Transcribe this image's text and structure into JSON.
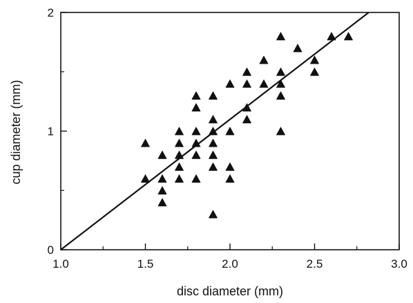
{
  "chart_data": {
    "type": "scatter",
    "title": "",
    "xlabel": "disc diameter (mm)",
    "ylabel": "cup diameter (mm)",
    "xlim": [
      1.0,
      3.0
    ],
    "ylim": [
      0,
      2
    ],
    "x_ticks": [
      1.0,
      1.5,
      2.0,
      2.5,
      3.0
    ],
    "x_tick_labels": [
      "1.0",
      "1.5",
      "2.0",
      "2.5",
      "3.0"
    ],
    "x_minor_ticks": [
      1.25,
      1.75,
      2.25,
      2.75
    ],
    "y_ticks": [
      0,
      1,
      2
    ],
    "y_tick_labels": [
      "0",
      "1",
      "2"
    ],
    "y_minor_ticks": [
      0.5,
      1.5
    ],
    "grid": false,
    "marker": "triangle",
    "marker_color": "#111111",
    "series": [
      {
        "points": [
          [
            1.5,
            0.9
          ],
          [
            1.5,
            0.6
          ],
          [
            1.6,
            0.8
          ],
          [
            1.6,
            0.6
          ],
          [
            1.6,
            0.5
          ],
          [
            1.6,
            0.4
          ],
          [
            1.7,
            1.0
          ],
          [
            1.7,
            0.9
          ],
          [
            1.7,
            0.8
          ],
          [
            1.7,
            0.7
          ],
          [
            1.7,
            0.6
          ],
          [
            1.8,
            1.3
          ],
          [
            1.8,
            1.2
          ],
          [
            1.8,
            1.0
          ],
          [
            1.8,
            0.9
          ],
          [
            1.8,
            0.8
          ],
          [
            1.8,
            0.6
          ],
          [
            1.9,
            1.3
          ],
          [
            1.9,
            1.1
          ],
          [
            1.9,
            1.0
          ],
          [
            1.9,
            0.9
          ],
          [
            1.9,
            0.8
          ],
          [
            1.9,
            0.7
          ],
          [
            1.9,
            0.3
          ],
          [
            2.0,
            1.4
          ],
          [
            2.0,
            1.0
          ],
          [
            2.0,
            0.7
          ],
          [
            2.0,
            0.6
          ],
          [
            2.1,
            1.5
          ],
          [
            2.1,
            1.4
          ],
          [
            2.1,
            1.2
          ],
          [
            2.1,
            1.1
          ],
          [
            2.2,
            1.6
          ],
          [
            2.2,
            1.4
          ],
          [
            2.3,
            1.8
          ],
          [
            2.3,
            1.5
          ],
          [
            2.3,
            1.4
          ],
          [
            2.3,
            1.3
          ],
          [
            2.3,
            1.0
          ],
          [
            2.4,
            1.7
          ],
          [
            2.5,
            1.6
          ],
          [
            2.5,
            1.5
          ],
          [
            2.6,
            1.8
          ],
          [
            2.7,
            1.8
          ]
        ]
      }
    ],
    "fit_line": {
      "points": [
        [
          1.0,
          0.0
        ],
        [
          2.82,
          2.0
        ]
      ],
      "color": "#111111"
    }
  }
}
